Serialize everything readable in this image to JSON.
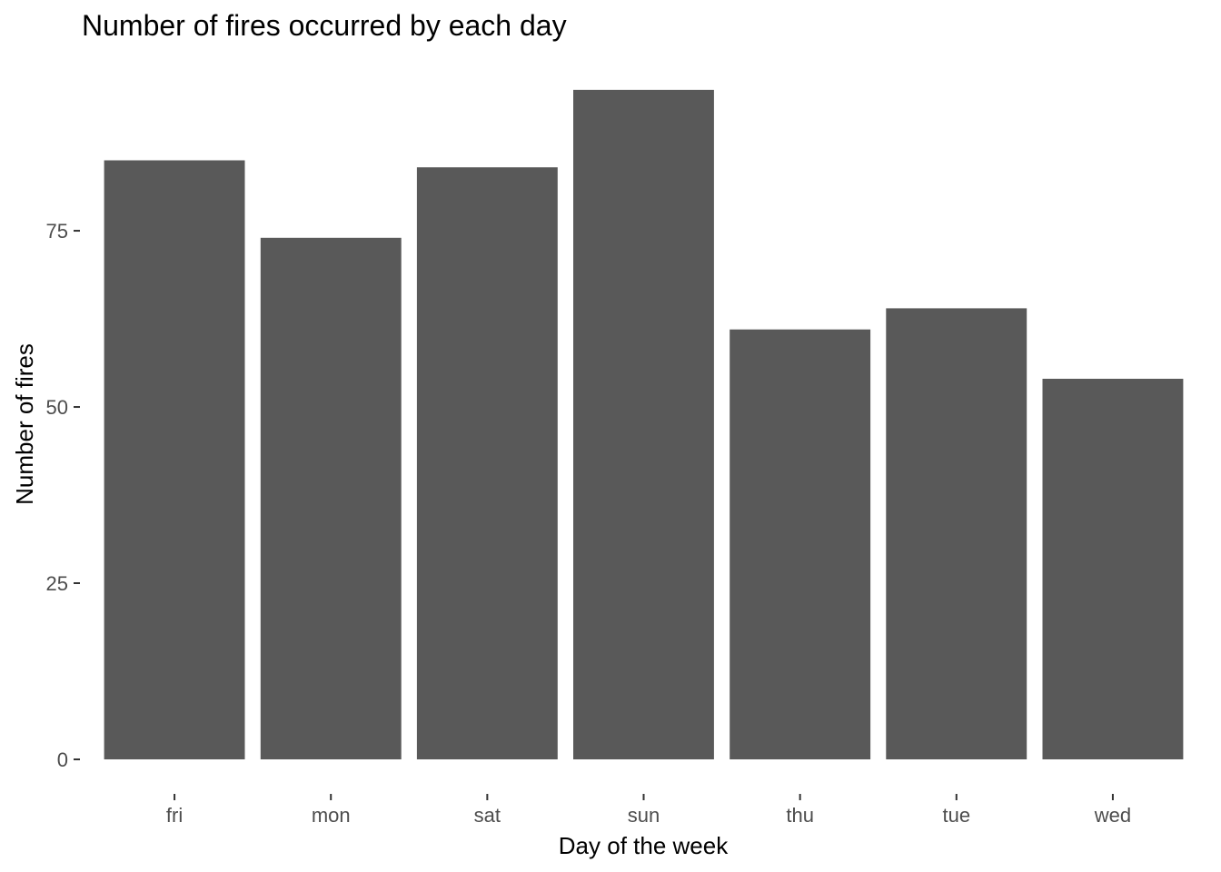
{
  "chart_data": {
    "type": "bar",
    "title": "Number of fires occurred by each day",
    "xlabel": "Day of the week",
    "ylabel": "Number of fires",
    "categories": [
      "fri",
      "mon",
      "sat",
      "sun",
      "thu",
      "tue",
      "wed"
    ],
    "values": [
      85,
      74,
      84,
      95,
      61,
      64,
      54
    ],
    "yticks": [
      0,
      25,
      50,
      75
    ],
    "ylim": [
      0,
      99.75
    ],
    "grid": false,
    "legend": "none",
    "bar_color": "#595959",
    "tick_color": "#333333",
    "label_color": "#4d4d4d"
  }
}
